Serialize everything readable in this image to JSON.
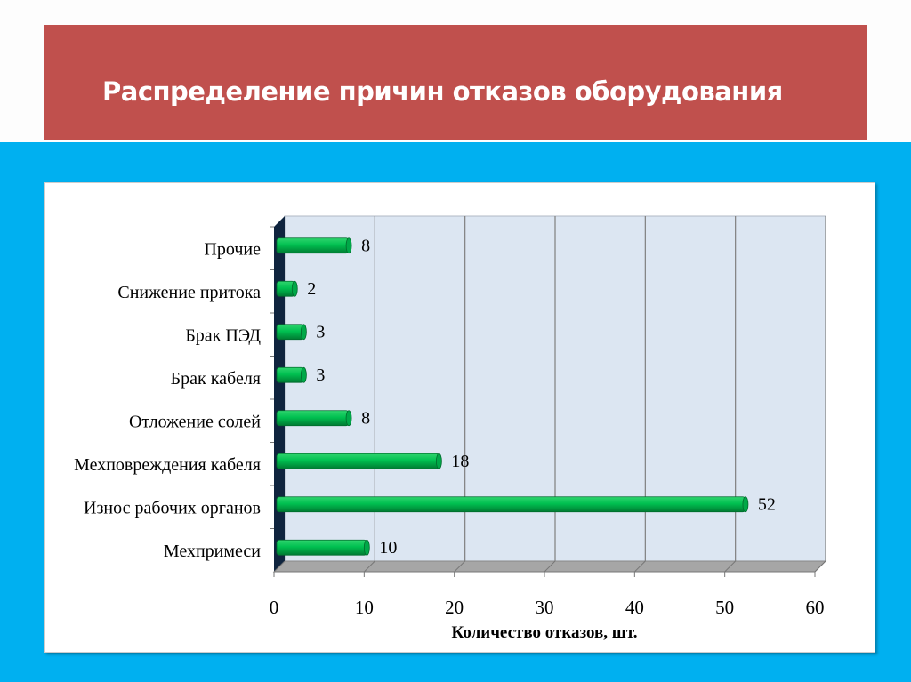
{
  "slide": {
    "title": "Распределение причин отказов оборудования"
  },
  "colors": {
    "title_bg": "#c0504d",
    "background": "#00b0f0",
    "bar": "#00b050",
    "plot_wall": "#dce6f2"
  },
  "chart_data": {
    "type": "bar",
    "orientation": "horizontal",
    "style": "3d-cylinder",
    "categories": [
      "Прочие",
      "Снижение притока",
      "Брак ПЭД",
      "Брак кабеля",
      "Отложение солей",
      "Мехповреждения кабеля",
      "Износ рабочих органов",
      "Мехпримеси"
    ],
    "values": [
      8,
      2,
      3,
      3,
      8,
      18,
      52,
      10
    ],
    "xlabel": "Количество  отказов, шт.",
    "xlim": [
      0,
      60
    ],
    "xticks": [
      "0",
      "10",
      "20",
      "30",
      "40",
      "50",
      "60"
    ],
    "grid": true,
    "legend": "none"
  }
}
